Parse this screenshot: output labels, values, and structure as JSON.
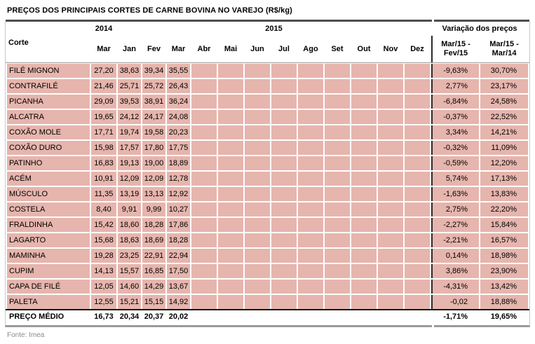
{
  "title": "PREÇOS DOS PRINCIPAIS CORTES DE CARNE BOVINA NO VAREJO (R$/kg)",
  "header": {
    "corte_label": "Corte",
    "year_2014": "2014",
    "year_2015": "2015",
    "variacao_label": "Variação dos preços",
    "months": [
      "Mar",
      "Jan",
      "Fev",
      "Mar",
      "Abr",
      "Mai",
      "Jun",
      "Jul",
      "Ago",
      "Set",
      "Out",
      "Nov",
      "Dez"
    ],
    "var_col_1": "Mar/15 -\nFev/15",
    "var_col_2": "Mar/15 -\nMar/14"
  },
  "table": {
    "rows": [
      {
        "name": "FILÉ MIGNON",
        "values": [
          "27,20",
          "38,63",
          "39,34",
          "35,55"
        ],
        "var1": "-9,63%",
        "var2": "30,70%"
      },
      {
        "name": "CONTRAFILÉ",
        "values": [
          "21,46",
          "25,71",
          "25,72",
          "26,43"
        ],
        "var1": "2,77%",
        "var2": "23,17%"
      },
      {
        "name": "PICANHA",
        "values": [
          "29,09",
          "39,53",
          "38,91",
          "36,24"
        ],
        "var1": "-6,84%",
        "var2": "24,58%"
      },
      {
        "name": "ALCATRA",
        "values": [
          "19,65",
          "24,12",
          "24,17",
          "24,08"
        ],
        "var1": "-0,37%",
        "var2": "22,52%"
      },
      {
        "name": "COXÃO MOLE",
        "values": [
          "17,71",
          "19,74",
          "19,58",
          "20,23"
        ],
        "var1": "3,34%",
        "var2": "14,21%"
      },
      {
        "name": "COXÃO DURO",
        "values": [
          "15,98",
          "17,57",
          "17,80",
          "17,75"
        ],
        "var1": "-0,32%",
        "var2": "11,09%"
      },
      {
        "name": "PATINHO",
        "values": [
          "16,83",
          "19,13",
          "19,00",
          "18,89"
        ],
        "var1": "-0,59%",
        "var2": "12,20%"
      },
      {
        "name": "ACÉM",
        "values": [
          "10,91",
          "12,09",
          "12,09",
          "12,78"
        ],
        "var1": "5,74%",
        "var2": "17,13%"
      },
      {
        "name": "MÚSCULO",
        "values": [
          "11,35",
          "13,19",
          "13,13",
          "12,92"
        ],
        "var1": "-1,63%",
        "var2": "13,83%"
      },
      {
        "name": "COSTELA",
        "values": [
          "8,40",
          "9,91",
          "9,99",
          "10,27"
        ],
        "var1": "2,75%",
        "var2": "22,20%"
      },
      {
        "name": "FRALDINHA",
        "values": [
          "15,42",
          "18,60",
          "18,28",
          "17,86"
        ],
        "var1": "-2,27%",
        "var2": "15,84%"
      },
      {
        "name": "LAGARTO",
        "values": [
          "15,68",
          "18,63",
          "18,69",
          "18,28"
        ],
        "var1": "-2,21%",
        "var2": "16,57%"
      },
      {
        "name": "MAMINHA",
        "values": [
          "19,28",
          "23,25",
          "22,91",
          "22,94"
        ],
        "var1": "0,14%",
        "var2": "18,98%"
      },
      {
        "name": "CUPIM",
        "values": [
          "14,13",
          "15,57",
          "16,85",
          "17,50"
        ],
        "var1": "3,86%",
        "var2": "23,90%"
      },
      {
        "name": "CAPA DE FILÉ",
        "values": [
          "12,05",
          "14,60",
          "14,29",
          "13,67"
        ],
        "var1": "-4,31%",
        "var2": "13,42%"
      },
      {
        "name": "PALETA",
        "values": [
          "12,55",
          "15,21",
          "15,15",
          "14,92"
        ],
        "var1": "-0,02",
        "var2": "18,88%"
      }
    ],
    "empty_month_count": 9,
    "total": {
      "name": "PREÇO MÉDIO",
      "values": [
        "16,73",
        "20,34",
        "20,37",
        "20,02"
      ],
      "var1": "-1,71%",
      "var2": "19,65%"
    }
  },
  "footer": {
    "source": "Fonte: Imea"
  },
  "colors": {
    "cell_pink": "#e6b5ad",
    "rule_dark": "#4d4d4d",
    "rule_gray": "#9a9a9a",
    "separator_black": "#2b2b2b",
    "total_rule": "#141414",
    "text": "#000000",
    "source_gray": "#8a8a8a"
  },
  "chart_data": {
    "type": "table",
    "title": "PREÇOS DOS PRINCIPAIS CORTES DE CARNE BOVINA NO VAREJO (R$/kg)",
    "columns": [
      "Corte",
      "Mar 2014",
      "Jan 2015",
      "Fev 2015",
      "Mar 2015",
      "Abr 2015",
      "Mai 2015",
      "Jun 2015",
      "Jul 2015",
      "Ago 2015",
      "Set 2015",
      "Out 2015",
      "Nov 2015",
      "Dez 2015",
      "Variação Mar/15 - Fev/15",
      "Variação Mar/15 - Mar/14"
    ],
    "rows": [
      [
        "FILÉ MIGNON",
        27.2,
        38.63,
        39.34,
        35.55,
        null,
        null,
        null,
        null,
        null,
        null,
        null,
        null,
        null,
        "-9,63%",
        "30,70%"
      ],
      [
        "CONTRAFILÉ",
        21.46,
        25.71,
        25.72,
        26.43,
        null,
        null,
        null,
        null,
        null,
        null,
        null,
        null,
        null,
        "2,77%",
        "23,17%"
      ],
      [
        "PICANHA",
        29.09,
        39.53,
        38.91,
        36.24,
        null,
        null,
        null,
        null,
        null,
        null,
        null,
        null,
        null,
        "-6,84%",
        "24,58%"
      ],
      [
        "ALCATRA",
        19.65,
        24.12,
        24.17,
        24.08,
        null,
        null,
        null,
        null,
        null,
        null,
        null,
        null,
        null,
        "-0,37%",
        "22,52%"
      ],
      [
        "COXÃO MOLE",
        17.71,
        19.74,
        19.58,
        20.23,
        null,
        null,
        null,
        null,
        null,
        null,
        null,
        null,
        null,
        "3,34%",
        "14,21%"
      ],
      [
        "COXÃO DURO",
        15.98,
        17.57,
        17.8,
        17.75,
        null,
        null,
        null,
        null,
        null,
        null,
        null,
        null,
        null,
        "-0,32%",
        "11,09%"
      ],
      [
        "PATINHO",
        16.83,
        19.13,
        19.0,
        18.89,
        null,
        null,
        null,
        null,
        null,
        null,
        null,
        null,
        null,
        "-0,59%",
        "12,20%"
      ],
      [
        "ACÉM",
        10.91,
        12.09,
        12.09,
        12.78,
        null,
        null,
        null,
        null,
        null,
        null,
        null,
        null,
        null,
        "5,74%",
        "17,13%"
      ],
      [
        "MÚSCULO",
        11.35,
        13.19,
        13.13,
        12.92,
        null,
        null,
        null,
        null,
        null,
        null,
        null,
        null,
        null,
        "-1,63%",
        "13,83%"
      ],
      [
        "COSTELA",
        8.4,
        9.91,
        9.99,
        10.27,
        null,
        null,
        null,
        null,
        null,
        null,
        null,
        null,
        null,
        "2,75%",
        "22,20%"
      ],
      [
        "FRALDINHA",
        15.42,
        18.6,
        18.28,
        17.86,
        null,
        null,
        null,
        null,
        null,
        null,
        null,
        null,
        null,
        "-2,27%",
        "15,84%"
      ],
      [
        "LAGARTO",
        15.68,
        18.63,
        18.69,
        18.28,
        null,
        null,
        null,
        null,
        null,
        null,
        null,
        null,
        null,
        "-2,21%",
        "16,57%"
      ],
      [
        "MAMINHA",
        19.28,
        23.25,
        22.91,
        22.94,
        null,
        null,
        null,
        null,
        null,
        null,
        null,
        null,
        null,
        "0,14%",
        "18,98%"
      ],
      [
        "CUPIM",
        14.13,
        15.57,
        16.85,
        17.5,
        null,
        null,
        null,
        null,
        null,
        null,
        null,
        null,
        null,
        "3,86%",
        "23,90%"
      ],
      [
        "CAPA DE FILÉ",
        12.05,
        14.6,
        14.29,
        13.67,
        null,
        null,
        null,
        null,
        null,
        null,
        null,
        null,
        null,
        "-4,31%",
        "13,42%"
      ],
      [
        "PALETA",
        12.55,
        15.21,
        15.15,
        14.92,
        null,
        null,
        null,
        null,
        null,
        null,
        null,
        null,
        null,
        "-0,02",
        "18,88%"
      ],
      [
        "PREÇO MÉDIO",
        16.73,
        20.34,
        20.37,
        20.02,
        null,
        null,
        null,
        null,
        null,
        null,
        null,
        null,
        null,
        "-1,71%",
        "19,65%"
      ]
    ],
    "source": "Fonte: Imea"
  }
}
